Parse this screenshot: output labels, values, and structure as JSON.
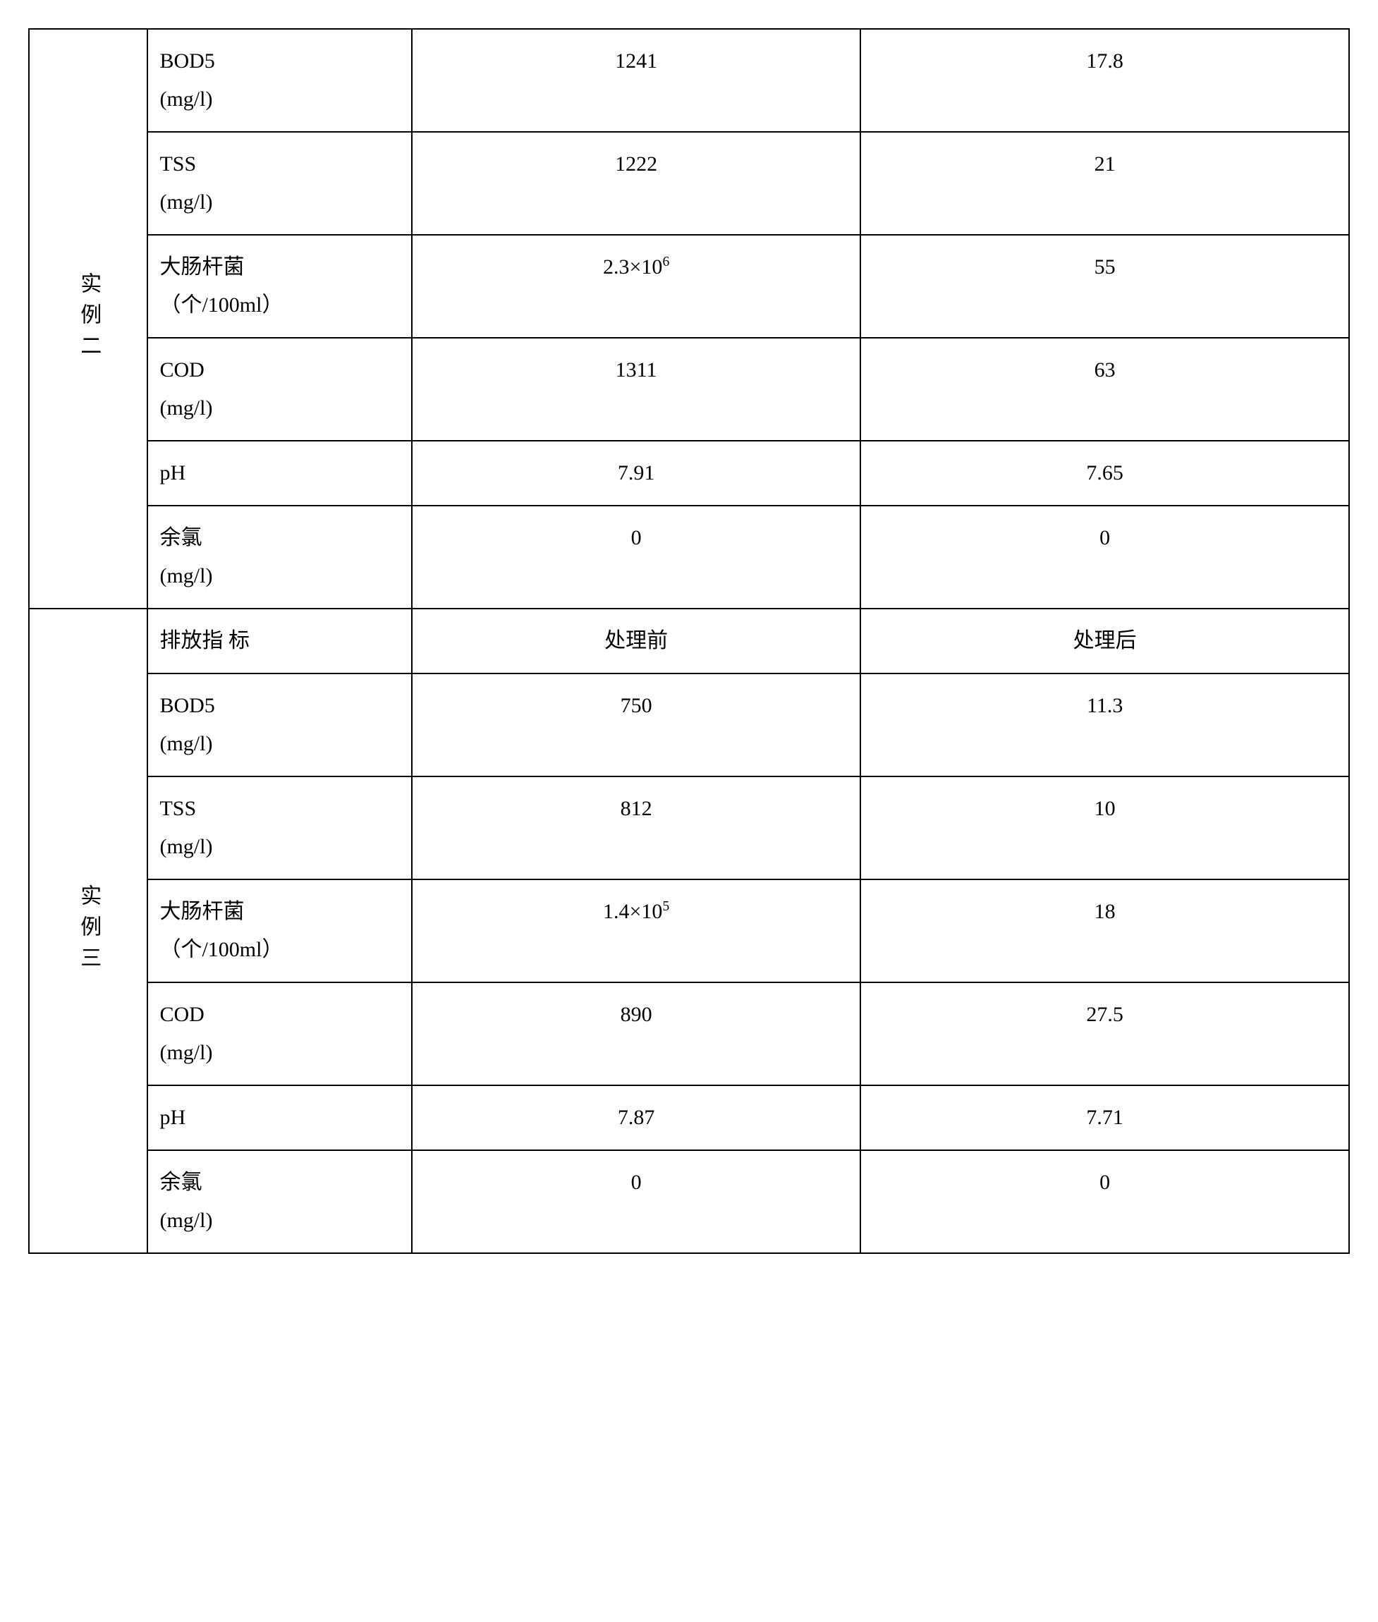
{
  "table": {
    "border_color": "#000000",
    "background_color": "#ffffff",
    "text_color": "#000000",
    "font_family": "Times New Roman / SimSun",
    "base_font_size_pt": 22,
    "column_widths_pct": [
      9,
      20,
      34,
      37
    ],
    "groups": [
      {
        "label": "实例二",
        "rows": [
          {
            "param": "BOD5 (mg/l)",
            "before": "1241",
            "after": "17.8"
          },
          {
            "param": "TSS (mg/l)",
            "before": "1222",
            "after": "21"
          },
          {
            "param": "大肠杆菌 （个/100ml）",
            "before": "2.3×10^6",
            "after": "55"
          },
          {
            "param": "COD (mg/l)",
            "before": "1311",
            "after": "63"
          },
          {
            "param": "pH",
            "before": "7.91",
            "after": "7.65"
          },
          {
            "param": "余氯 (mg/l)",
            "before": "0",
            "after": "0"
          }
        ]
      },
      {
        "label": "实例三",
        "header": {
          "param": "排放指 标",
          "before": "处理前",
          "after": "处理后"
        },
        "rows": [
          {
            "param": "BOD5 (mg/l)",
            "before": "750",
            "after": "11.3"
          },
          {
            "param": "TSS (mg/l)",
            "before": "812",
            "after": "10"
          },
          {
            "param": "大肠杆菌 （个/100ml）",
            "before": "1.4×10^5",
            "after": "18"
          },
          {
            "param": "COD (mg/l)",
            "before": "890",
            "after": "27.5"
          },
          {
            "param": "pH",
            "before": "7.87",
            "after": "7.71"
          },
          {
            "param": "余氯 (mg/l)",
            "before": "0",
            "after": "0"
          }
        ]
      }
    ],
    "labels": {
      "group2": "实例二",
      "group3": "实例三",
      "header_param": "排放指 标",
      "header_before": "处理前",
      "header_after": "处理后",
      "bod5_a": "BOD5",
      "bod5_b": "(mg/l)",
      "tss_a": "TSS",
      "tss_b": "(mg/l)",
      "coli_a": "大肠杆菌",
      "coli_b": "（个/100ml）",
      "cod_a": "COD",
      "cod_b": "(mg/l)",
      "ph": "pH",
      "cl_a": "余氯",
      "cl_b": "(mg/l)",
      "g2_bod5_before": "1241",
      "g2_bod5_after": "17.8",
      "g2_tss_before": "1222",
      "g2_tss_after": "21",
      "g2_coli_before_mant": "2.3×10",
      "g2_coli_before_exp": "6",
      "g2_coli_after": "55",
      "g2_cod_before": "1311",
      "g2_cod_after": "63",
      "g2_ph_before": "7.91",
      "g2_ph_after": "7.65",
      "g2_cl_before": "0",
      "g2_cl_after": "0",
      "g3_bod5_before": "750",
      "g3_bod5_after": "11.3",
      "g3_tss_before": "812",
      "g3_tss_after": "10",
      "g3_coli_before_mant": "1.4×10",
      "g3_coli_before_exp": "5",
      "g3_coli_after": "18",
      "g3_cod_before": "890",
      "g3_cod_after": "27.5",
      "g3_ph_before": "7.87",
      "g3_ph_after": "7.71",
      "g3_cl_before": "0",
      "g3_cl_after": "0"
    }
  }
}
